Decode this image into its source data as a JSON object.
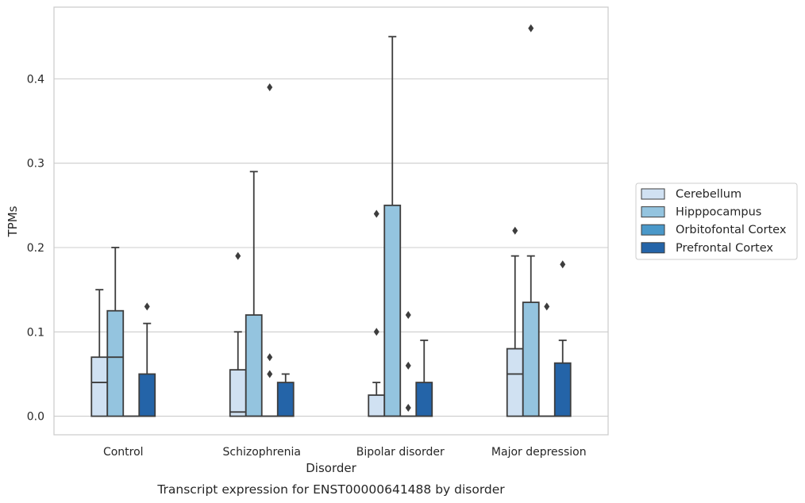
{
  "chart_data": {
    "type": "boxplot",
    "title": "Transcript expression for ENST00000641488 by disorder",
    "xlabel": "Disorder",
    "ylabel": "TPMs",
    "categories": [
      "Control",
      "Schizophrenia",
      "Bipolar disorder",
      "Major depression"
    ],
    "ylim": [
      -0.022,
      0.485
    ],
    "yticks": [
      0.0,
      0.1,
      0.2,
      0.3,
      0.4
    ],
    "ytick_labels": [
      "0.0",
      "0.1",
      "0.2",
      "0.3",
      "0.4"
    ],
    "grid": true,
    "legend_position": "right, outside plot",
    "series": [
      {
        "name": "Cerebellum",
        "color": "#d0e1f2",
        "boxes": [
          {
            "q1": 0.0,
            "median": 0.04,
            "q3": 0.07,
            "whisker_low": 0.0,
            "whisker_high": 0.15,
            "outliers": []
          },
          {
            "q1": 0.0,
            "median": 0.005,
            "q3": 0.055,
            "whisker_low": 0.0,
            "whisker_high": 0.1,
            "outliers": [
              0.19
            ]
          },
          {
            "q1": 0.0,
            "median": 0.0,
            "q3": 0.025,
            "whisker_low": 0.0,
            "whisker_high": 0.04,
            "outliers": [
              0.1,
              0.24
            ]
          },
          {
            "q1": 0.0,
            "median": 0.05,
            "q3": 0.08,
            "whisker_low": 0.0,
            "whisker_high": 0.19,
            "outliers": [
              0.22
            ]
          }
        ]
      },
      {
        "name": "Hipppocampus",
        "color": "#94c4df",
        "boxes": [
          {
            "q1": 0.0,
            "median": 0.07,
            "q3": 0.125,
            "whisker_low": 0.0,
            "whisker_high": 0.2,
            "outliers": []
          },
          {
            "q1": 0.0,
            "median": 0.0,
            "q3": 0.12,
            "whisker_low": 0.0,
            "whisker_high": 0.29,
            "outliers": []
          },
          {
            "q1": 0.0,
            "median": 0.0,
            "q3": 0.25,
            "whisker_low": 0.0,
            "whisker_high": 0.45,
            "outliers": []
          },
          {
            "q1": 0.0,
            "median": 0.0,
            "q3": 0.135,
            "whisker_low": 0.0,
            "whisker_high": 0.19,
            "outliers": [
              0.46
            ]
          }
        ]
      },
      {
        "name": "Orbitofontal Cortex",
        "color": "#4a98c9",
        "boxes": [
          {
            "q1": 0.0,
            "median": 0.0,
            "q3": 0.0,
            "whisker_low": 0.0,
            "whisker_high": 0.0,
            "outliers": []
          },
          {
            "q1": 0.0,
            "median": 0.0,
            "q3": 0.0,
            "whisker_low": 0.0,
            "whisker_high": 0.0,
            "outliers": [
              0.05,
              0.07,
              0.39
            ]
          },
          {
            "q1": 0.0,
            "median": 0.0,
            "q3": 0.0,
            "whisker_low": 0.0,
            "whisker_high": 0.0,
            "outliers": [
              0.01,
              0.06,
              0.12
            ]
          },
          {
            "q1": 0.0,
            "median": 0.0,
            "q3": 0.0,
            "whisker_low": 0.0,
            "whisker_high": 0.0,
            "outliers": [
              0.13
            ]
          }
        ]
      },
      {
        "name": "Prefrontal Cortex",
        "color": "#2464a8",
        "boxes": [
          {
            "q1": 0.0,
            "median": 0.0,
            "q3": 0.05,
            "whisker_low": 0.0,
            "whisker_high": 0.11,
            "outliers": [
              0.13
            ]
          },
          {
            "q1": 0.0,
            "median": 0.0,
            "q3": 0.04,
            "whisker_low": 0.0,
            "whisker_high": 0.05,
            "outliers": []
          },
          {
            "q1": 0.0,
            "median": 0.0,
            "q3": 0.04,
            "whisker_low": 0.0,
            "whisker_high": 0.09,
            "outliers": []
          },
          {
            "q1": 0.0,
            "median": 0.0,
            "q3": 0.063,
            "whisker_low": 0.0,
            "whisker_high": 0.09,
            "outliers": [
              0.18
            ]
          }
        ]
      }
    ]
  },
  "colors": {
    "grid": "#cccccc",
    "frame": "#cccccc",
    "box_edge": "#3d3d3d",
    "text": "#262626"
  }
}
